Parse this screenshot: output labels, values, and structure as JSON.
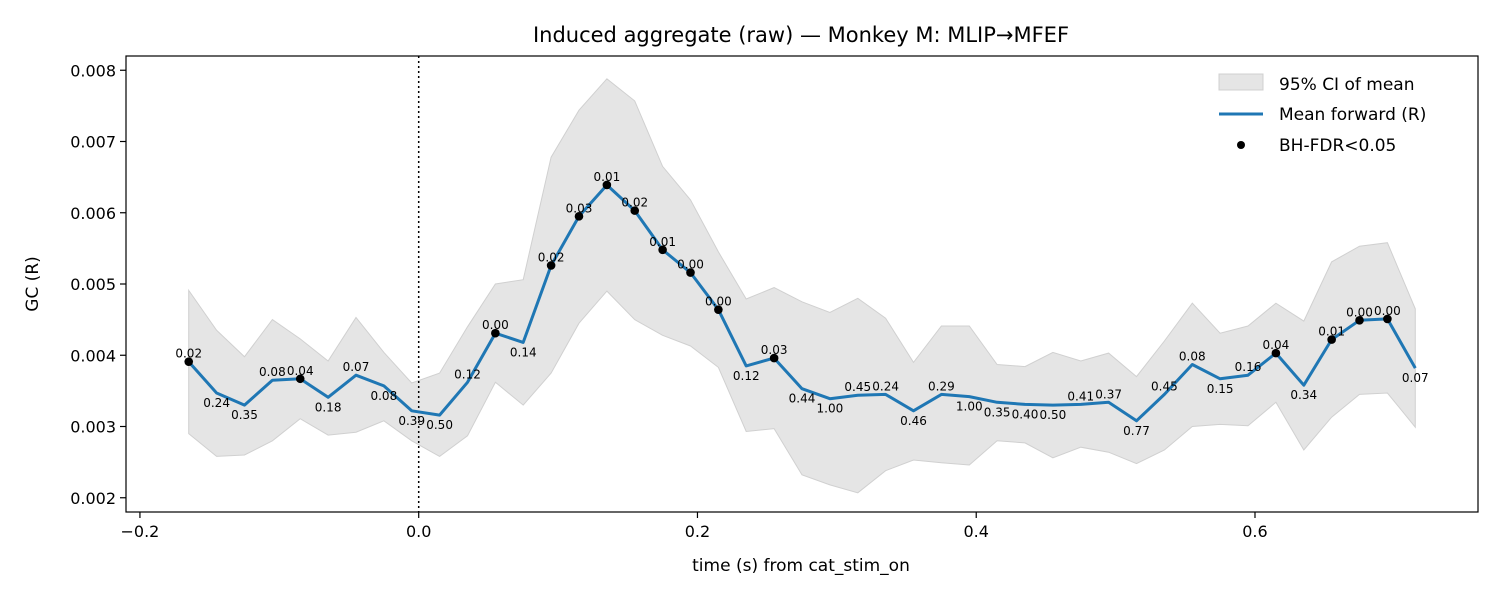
{
  "chart_data": {
    "type": "line",
    "title": "Induced aggregate (raw) — Monkey M: MLIP→MFEF",
    "xlabel": "time (s) from cat_stim_on",
    "ylabel": "GC (R)",
    "xlim": [
      -0.21,
      0.76
    ],
    "ylim": [
      0.0018,
      0.0082
    ],
    "xticks": [
      -0.2,
      0.0,
      0.2,
      0.4,
      0.6
    ],
    "xtick_labels": [
      "−0.2",
      "0.0",
      "0.2",
      "0.4",
      "0.6"
    ],
    "yticks": [
      0.002,
      0.003,
      0.004,
      0.005,
      0.006,
      0.007,
      0.008
    ],
    "ytick_labels": [
      "0.002",
      "0.003",
      "0.004",
      "0.005",
      "0.006",
      "0.007",
      "0.008"
    ],
    "event_line_x": 0.0,
    "legend_position": "top-right",
    "legend": [
      {
        "kind": "band",
        "label": "95% CI of mean"
      },
      {
        "kind": "line",
        "label": "Mean forward (R)"
      },
      {
        "kind": "dot",
        "label": "BH-FDR<0.05"
      }
    ],
    "colors": {
      "mean_line": "#1f77b4",
      "ci_band": "#e5e5e5",
      "ci_edge": "#d0d0d0",
      "significant_dot": "#000000"
    },
    "series": [
      {
        "name": "Mean forward (R)",
        "x": [
          -0.165,
          -0.145,
          -0.125,
          -0.105,
          -0.085,
          -0.065,
          -0.045,
          -0.025,
          -0.005,
          0.015,
          0.035,
          0.055,
          0.075,
          0.095,
          0.115,
          0.135,
          0.155,
          0.175,
          0.195,
          0.215,
          0.235,
          0.255,
          0.275,
          0.295,
          0.315,
          0.335,
          0.355,
          0.375,
          0.395,
          0.415,
          0.435,
          0.455,
          0.475,
          0.495,
          0.515,
          0.535,
          0.555,
          0.575,
          0.595,
          0.615,
          0.635,
          0.655,
          0.675,
          0.695,
          0.715
        ],
        "y": [
          0.00391,
          0.00347,
          0.0033,
          0.00365,
          0.00367,
          0.00341,
          0.00372,
          0.00357,
          0.00322,
          0.00316,
          0.00362,
          0.00431,
          0.00418,
          0.00526,
          0.00595,
          0.00639,
          0.00603,
          0.00548,
          0.00516,
          0.00464,
          0.00385,
          0.00396,
          0.00353,
          0.00339,
          0.00344,
          0.00345,
          0.00322,
          0.00345,
          0.00342,
          0.00334,
          0.00331,
          0.0033,
          0.00331,
          0.00334,
          0.00308,
          0.00345,
          0.00387,
          0.00367,
          0.00372,
          0.00403,
          0.00358,
          0.00422,
          0.00449,
          0.00451,
          0.00382
        ],
        "ci_low": [
          0.0029,
          0.00258,
          0.0026,
          0.0028,
          0.00311,
          0.00288,
          0.00292,
          0.00308,
          0.0028,
          0.00258,
          0.00287,
          0.00362,
          0.0033,
          0.00375,
          0.00445,
          0.0049,
          0.0045,
          0.00428,
          0.00413,
          0.00383,
          0.00293,
          0.00297,
          0.00232,
          0.00218,
          0.00207,
          0.00238,
          0.00253,
          0.00249,
          0.00246,
          0.0028,
          0.00277,
          0.00256,
          0.00271,
          0.00264,
          0.00248,
          0.00267,
          0.003,
          0.00303,
          0.00301,
          0.00334,
          0.00267,
          0.00313,
          0.00345,
          0.00347,
          0.00299
        ],
        "ci_high": [
          0.00491,
          0.00435,
          0.00398,
          0.0045,
          0.00423,
          0.00392,
          0.00453,
          0.00404,
          0.00361,
          0.00375,
          0.0044,
          0.005,
          0.00506,
          0.00678,
          0.00744,
          0.00788,
          0.00757,
          0.00665,
          0.00618,
          0.00545,
          0.00479,
          0.00495,
          0.00475,
          0.0046,
          0.0048,
          0.00452,
          0.0039,
          0.00441,
          0.00441,
          0.00387,
          0.00384,
          0.00404,
          0.00392,
          0.00403,
          0.0037,
          0.0042,
          0.00473,
          0.00431,
          0.00441,
          0.00473,
          0.00448,
          0.00531,
          0.00553,
          0.00558,
          0.00465
        ],
        "p_labels": [
          "0.02",
          "0.24",
          "0.35",
          "0.08",
          "0.04",
          "0.18",
          "0.07",
          "0.08",
          "0.39",
          "0.50",
          "0.12",
          "0.00",
          "0.14",
          "0.02",
          "0.03",
          "0.01",
          "0.02",
          "0.01",
          "0.00",
          "0.00",
          "0.12",
          "0.03",
          "0.44",
          "1.00",
          "0.45",
          "0.24",
          "0.46",
          "0.29",
          "1.00",
          "0.35",
          "0.40",
          "0.50",
          "0.41",
          "0.37",
          "0.77",
          "0.45",
          "0.08",
          "0.15",
          "0.16",
          "0.04",
          "0.34",
          "0.01",
          "0.00",
          "0.00",
          "0.07"
        ],
        "significant": [
          true,
          false,
          false,
          false,
          true,
          false,
          false,
          false,
          false,
          false,
          false,
          true,
          false,
          true,
          true,
          true,
          true,
          true,
          true,
          true,
          false,
          true,
          false,
          false,
          false,
          false,
          false,
          false,
          false,
          false,
          false,
          false,
          false,
          false,
          false,
          false,
          false,
          false,
          false,
          true,
          false,
          true,
          true,
          true,
          false
        ]
      }
    ]
  }
}
